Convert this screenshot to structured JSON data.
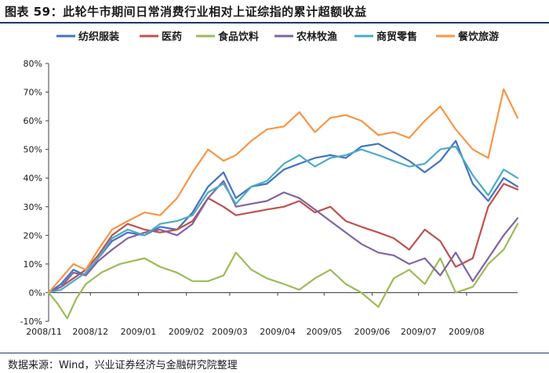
{
  "header": {
    "title": "图表 59：此轮牛市期间日常消费行业相对上证综指的累计超额收益"
  },
  "footer": {
    "source": "数据来源：Wind，兴业证券经济与金融研究院整理"
  },
  "colors": {
    "纺织服装": "#4472C4",
    "医药": "#C0504D",
    "食品饮料": "#9BBB59",
    "农林牧渔": "#8064A2",
    "商贸零售": "#4BACC6",
    "餐饮旅游": "#F79646"
  },
  "chart_data": {
    "type": "line",
    "title": "",
    "xlabel": "",
    "ylabel": "",
    "ylim": [
      -10,
      80
    ],
    "y_unit": "%",
    "y_ticks": [
      -10,
      0,
      10,
      20,
      30,
      40,
      50,
      60,
      70,
      80
    ],
    "y_tick_labels": [
      "-10%",
      "0%",
      "10%",
      "20%",
      "30%",
      "40%",
      "50%",
      "60%",
      "70%",
      "80%"
    ],
    "x_range": [
      "2008-11-04",
      "2009-09-03"
    ],
    "x_tick_labels": [
      "2008/11",
      "2008/12",
      "2009/01",
      "2009/02",
      "2009/03",
      "2009/04",
      "2009/05",
      "2009/06",
      "2009/07",
      "2009/08"
    ],
    "x_tick_dates": [
      "2008-11-01",
      "2008-12-01",
      "2009-01-01",
      "2009-02-01",
      "2009-03-01",
      "2009-04-01",
      "2009-05-01",
      "2009-06-01",
      "2009-07-01",
      "2009-08-01"
    ],
    "legend": "top",
    "series": [
      {
        "name": "纺织服装",
        "x": [
          "2008-11-04",
          "2008-11-12",
          "2008-11-20",
          "2008-11-28",
          "2008-12-06",
          "2008-12-15",
          "2008-12-25",
          "2009-01-05",
          "2009-01-15",
          "2009-01-26",
          "2009-02-05",
          "2009-02-15",
          "2009-02-25",
          "2009-03-05",
          "2009-03-15",
          "2009-03-25",
          "2009-04-05",
          "2009-04-15",
          "2009-04-25",
          "2009-05-05",
          "2009-05-15",
          "2009-05-25",
          "2009-06-05",
          "2009-06-15",
          "2009-06-25",
          "2009-07-05",
          "2009-07-15",
          "2009-07-25",
          "2009-08-05",
          "2009-08-15",
          "2009-08-25",
          "2009-09-03"
        ],
        "values": [
          0,
          3,
          8,
          6,
          12,
          18,
          21,
          20,
          23,
          22,
          28,
          37,
          42,
          33,
          37,
          38,
          43,
          45,
          47,
          48,
          47,
          51,
          52,
          49,
          46,
          42,
          46,
          53,
          38,
          32,
          40,
          37
        ]
      },
      {
        "name": "医药",
        "x": [
          "2008-11-04",
          "2008-11-12",
          "2008-11-20",
          "2008-11-28",
          "2008-12-06",
          "2008-12-15",
          "2008-12-25",
          "2009-01-05",
          "2009-01-15",
          "2009-01-26",
          "2009-02-05",
          "2009-02-15",
          "2009-02-25",
          "2009-03-05",
          "2009-03-15",
          "2009-03-25",
          "2009-04-05",
          "2009-04-15",
          "2009-04-25",
          "2009-05-05",
          "2009-05-15",
          "2009-05-25",
          "2009-06-05",
          "2009-06-15",
          "2009-06-25",
          "2009-07-05",
          "2009-07-15",
          "2009-07-25",
          "2009-08-05",
          "2009-08-15",
          "2009-08-25",
          "2009-09-03"
        ],
        "values": [
          0,
          2,
          5,
          8,
          13,
          20,
          24,
          22,
          21,
          22,
          25,
          33,
          30,
          27,
          28,
          29,
          30,
          32,
          28,
          30,
          25,
          23,
          21,
          19,
          15,
          22,
          18,
          9,
          12,
          30,
          38,
          36
        ]
      },
      {
        "name": "食品饮料",
        "x": [
          "2008-11-04",
          "2008-11-10",
          "2008-11-16",
          "2008-11-22",
          "2008-11-28",
          "2008-12-08",
          "2008-12-20",
          "2009-01-05",
          "2009-01-15",
          "2009-01-26",
          "2009-02-05",
          "2009-02-15",
          "2009-02-25",
          "2009-03-05",
          "2009-03-15",
          "2009-03-25",
          "2009-04-05",
          "2009-04-15",
          "2009-04-25",
          "2009-05-05",
          "2009-05-15",
          "2009-05-25",
          "2009-06-05",
          "2009-06-15",
          "2009-06-25",
          "2009-07-05",
          "2009-07-15",
          "2009-07-25",
          "2009-08-05",
          "2009-08-15",
          "2009-08-25",
          "2009-09-03"
        ],
        "values": [
          0,
          -4,
          -9,
          -2,
          3,
          7,
          10,
          12,
          9,
          7,
          4,
          4,
          6,
          14,
          8,
          5,
          3,
          1,
          5,
          8,
          3,
          0,
          -5,
          5,
          8,
          3,
          12,
          0,
          2,
          10,
          15,
          24
        ]
      },
      {
        "name": "农林牧渔",
        "x": [
          "2008-11-04",
          "2008-11-12",
          "2008-11-20",
          "2008-11-28",
          "2008-12-06",
          "2008-12-15",
          "2008-12-25",
          "2009-01-05",
          "2009-01-15",
          "2009-01-26",
          "2009-02-05",
          "2009-02-15",
          "2009-02-25",
          "2009-03-05",
          "2009-03-15",
          "2009-03-25",
          "2009-04-05",
          "2009-04-15",
          "2009-04-25",
          "2009-05-05",
          "2009-05-15",
          "2009-05-25",
          "2009-06-05",
          "2009-06-15",
          "2009-06-25",
          "2009-07-05",
          "2009-07-15",
          "2009-07-25",
          "2009-08-05",
          "2009-08-15",
          "2009-08-25",
          "2009-09-03"
        ],
        "values": [
          0,
          2,
          7,
          6,
          11,
          15,
          19,
          21,
          22,
          20,
          24,
          33,
          39,
          30,
          31,
          32,
          35,
          33,
          29,
          25,
          21,
          17,
          14,
          13,
          10,
          12,
          6,
          14,
          4,
          12,
          20,
          26
        ]
      },
      {
        "name": "商贸零售",
        "x": [
          "2008-11-04",
          "2008-11-12",
          "2008-11-20",
          "2008-11-28",
          "2008-12-06",
          "2008-12-15",
          "2008-12-25",
          "2009-01-05",
          "2009-01-15",
          "2009-01-26",
          "2009-02-05",
          "2009-02-15",
          "2009-02-25",
          "2009-03-05",
          "2009-03-15",
          "2009-03-25",
          "2009-04-05",
          "2009-04-15",
          "2009-04-25",
          "2009-05-05",
          "2009-05-15",
          "2009-05-25",
          "2009-06-05",
          "2009-06-15",
          "2009-06-25",
          "2009-07-05",
          "2009-07-15",
          "2009-07-25",
          "2009-08-05",
          "2009-08-15",
          "2009-08-25",
          "2009-09-03"
        ],
        "values": [
          0,
          1,
          4,
          7,
          12,
          19,
          22,
          20,
          24,
          25,
          27,
          35,
          38,
          31,
          37,
          39,
          45,
          48,
          44,
          47,
          48,
          50,
          48,
          46,
          44,
          45,
          50,
          51,
          41,
          34,
          43,
          40
        ]
      },
      {
        "name": "餐饮旅游",
        "x": [
          "2008-11-04",
          "2008-11-12",
          "2008-11-20",
          "2008-11-28",
          "2008-12-06",
          "2008-12-15",
          "2008-12-25",
          "2009-01-05",
          "2009-01-15",
          "2009-01-26",
          "2009-02-05",
          "2009-02-15",
          "2009-02-25",
          "2009-03-05",
          "2009-03-15",
          "2009-03-25",
          "2009-04-05",
          "2009-04-15",
          "2009-04-25",
          "2009-05-05",
          "2009-05-15",
          "2009-05-25",
          "2009-06-05",
          "2009-06-15",
          "2009-06-25",
          "2009-07-05",
          "2009-07-15",
          "2009-07-25",
          "2009-08-05",
          "2009-08-15",
          "2009-08-25",
          "2009-09-03"
        ],
        "values": [
          0,
          5,
          10,
          8,
          15,
          22,
          25,
          28,
          27,
          33,
          42,
          50,
          46,
          48,
          53,
          57,
          58,
          63,
          56,
          61,
          62,
          60,
          55,
          56,
          54,
          60,
          65,
          57,
          50,
          47,
          71,
          61
        ]
      }
    ]
  }
}
